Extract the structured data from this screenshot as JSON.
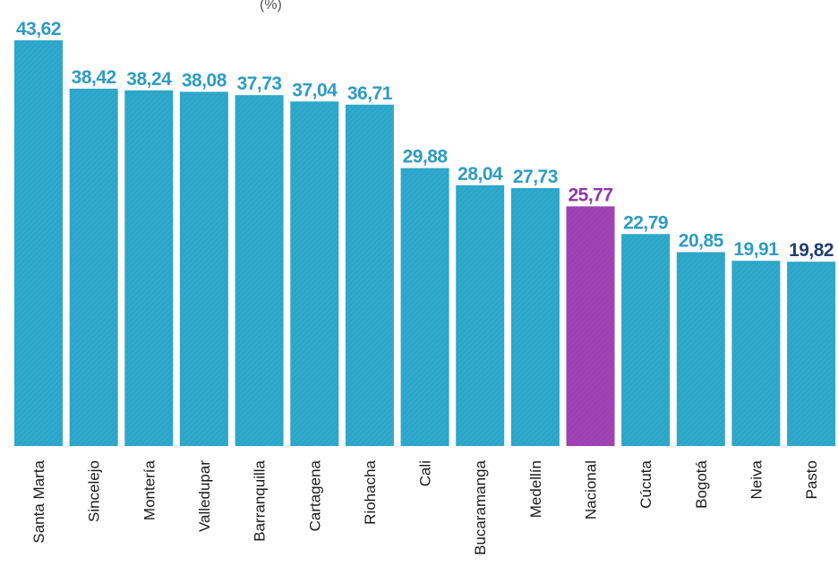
{
  "chart_data": {
    "type": "bar",
    "title": "",
    "xlabel": "",
    "ylabel": "",
    "categories": [
      "Santa Marta",
      "Sincelejo",
      "Montería",
      "Valledupar",
      "Barranquilla",
      "Cartagena",
      "Riohacha",
      "Cali",
      "Bucaramanga",
      "Medellín",
      "Nacional",
      "Cúcuta",
      "Bogotá",
      "Neiva",
      "Pasto"
    ],
    "value_labels": [
      "43,62",
      "38,42",
      "38,24",
      "38,08",
      "37,73",
      "37,04",
      "36,71",
      "29,88",
      "28,04",
      "27,73",
      "25,77",
      "22,79",
      "20,85",
      "19,91",
      "19,82"
    ],
    "values": [
      43.62,
      38.42,
      38.24,
      38.08,
      37.73,
      37.04,
      36.71,
      29.88,
      28.04,
      27.73,
      25.77,
      22.79,
      20.85,
      19.91,
      19.82
    ],
    "highlight": [
      "normal",
      "normal",
      "normal",
      "normal",
      "normal",
      "normal",
      "normal",
      "normal",
      "normal",
      "normal",
      "national",
      "normal",
      "normal",
      "normal",
      "normal"
    ],
    "ylim": [
      0,
      43.62
    ],
    "grid": false,
    "legend": "none"
  },
  "colors": {
    "bar": "#2fa9cc",
    "bar_highlight": "#a242b5",
    "value_text": "#2e9cc2",
    "value_text_highlight": "#8e3aa8",
    "value_text_last": "#1f3f70"
  },
  "title_fragment": "(%)"
}
